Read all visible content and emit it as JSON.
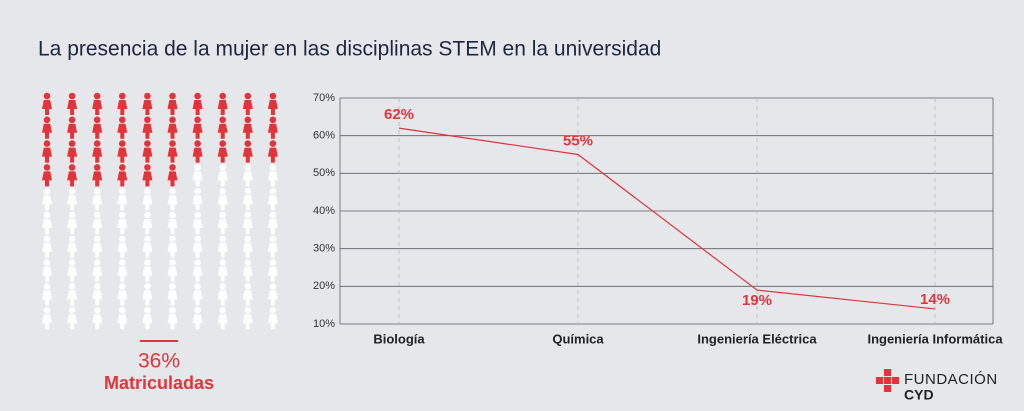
{
  "title": "La presencia de la mujer en las disciplinas STEM en la universidad",
  "chart_data": [
    {
      "type": "pictogram",
      "categories": [
        "Matriculadas"
      ],
      "values": [
        36
      ],
      "value_labels": [
        "36%"
      ],
      "color": "#e3343a"
    },
    {
      "type": "line",
      "categories": [
        "Biología",
        "Química",
        "Ingeniería Eléctrica",
        "Ingeniería Informática"
      ],
      "values": [
        62,
        55,
        19,
        14
      ],
      "value_labels": [
        "62%",
        "55%",
        "19%",
        "14%"
      ],
      "color": "#e3343a",
      "ylim": [
        10,
        70
      ],
      "yticks": [
        {
          "value": 10,
          "label": "10%"
        },
        {
          "value": 20,
          "label": "20%"
        },
        {
          "value": 30,
          "label": "30%"
        },
        {
          "value": 40,
          "label": "40%"
        },
        {
          "value": 50,
          "label": "50%"
        },
        {
          "value": 60,
          "label": "60%"
        },
        {
          "value": 70,
          "label": "70%"
        }
      ],
      "grid": true
    }
  ],
  "logo": {
    "text": "FUNDACIÓN",
    "subtext": "CYD"
  }
}
